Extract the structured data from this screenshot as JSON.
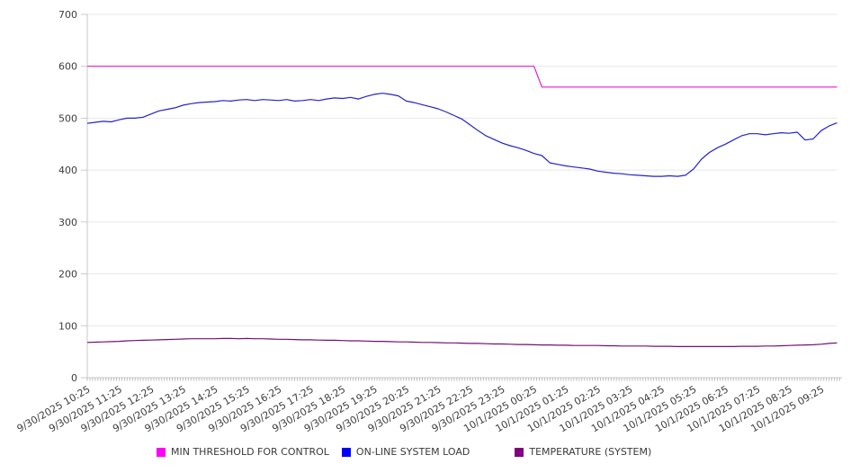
{
  "chart_data": {
    "type": "line",
    "title": "",
    "grid": true,
    "legend_position": "bottom",
    "y_axis": {
      "min": 0,
      "max": 700,
      "tick_step": 100
    },
    "x_axis": {
      "point_interval_minutes": 15,
      "minor_tick_minutes": 5,
      "labels_every_n_points": 4,
      "labels": [
        "9/30/2025 10:25",
        "9/30/2025 11:25",
        "9/30/2025 12:25",
        "9/30/2025 13:25",
        "9/30/2025 14:25",
        "9/30/2025 15:25",
        "9/30/2025 16:25",
        "9/30/2025 17:25",
        "9/30/2025 18:25",
        "9/30/2025 19:25",
        "9/30/2025 20:25",
        "9/30/2025 21:25",
        "9/30/2025 22:25",
        "9/30/2025 23:25",
        "10/1/2025 00:25",
        "10/1/2025 01:25",
        "10/1/2025 02:25",
        "10/1/2025 03:25",
        "10/1/2025 04:25",
        "10/1/2025 05:25",
        "10/1/2025 06:25",
        "10/1/2025 07:25",
        "10/1/2025 08:25",
        "10/1/2025 09:25"
      ]
    },
    "series": [
      {
        "id": "min-threshold-for-control",
        "name": "MIN THRESHOLD FOR CONTROL",
        "color": "#e61ad6",
        "swatch_color": "#ff00ff",
        "values": [
          600,
          600,
          600,
          600,
          600,
          600,
          600,
          600,
          600,
          600,
          600,
          600,
          600,
          600,
          600,
          600,
          600,
          600,
          600,
          600,
          600,
          600,
          600,
          600,
          600,
          600,
          600,
          600,
          600,
          600,
          600,
          600,
          600,
          600,
          600,
          600,
          600,
          600,
          600,
          600,
          600,
          600,
          600,
          600,
          600,
          600,
          600,
          600,
          600,
          600,
          600,
          600,
          600,
          600,
          600,
          600,
          600,
          560,
          560,
          560,
          560,
          560,
          560,
          560,
          560,
          560,
          560,
          560,
          560,
          560,
          560,
          560,
          560,
          560,
          560,
          560,
          560,
          560,
          560,
          560,
          560,
          560,
          560,
          560,
          560,
          560,
          560,
          560,
          560,
          560,
          560,
          560,
          560,
          560,
          560
        ]
      },
      {
        "id": "on-line-system-load",
        "name": "ON-LINE SYSTEM LOAD",
        "color": "#2323cc",
        "swatch_color": "#0000ff",
        "values": [
          490,
          492,
          494,
          493,
          497,
          500,
          500,
          502,
          508,
          514,
          517,
          520,
          525,
          528,
          530,
          531,
          532,
          534,
          533,
          535,
          536,
          534,
          536,
          535,
          534,
          536,
          533,
          534,
          536,
          534,
          537,
          539,
          538,
          540,
          537,
          542,
          546,
          548,
          546,
          543,
          533,
          530,
          526,
          522,
          518,
          512,
          505,
          498,
          487,
          476,
          466,
          459,
          452,
          447,
          443,
          438,
          432,
          428,
          414,
          411,
          408,
          406,
          404,
          402,
          398,
          396,
          394,
          393,
          391,
          390,
          389,
          388,
          388,
          389,
          388,
          390,
          402,
          421,
          434,
          443,
          450,
          458,
          466,
          470,
          470,
          468,
          470,
          472,
          471,
          473,
          458,
          460,
          476,
          485,
          491
        ]
      },
      {
        "id": "temperature-system",
        "name": "TEMPERATURE (SYSTEM)",
        "color": "#701270",
        "swatch_color": "#800080",
        "values": [
          68,
          68.5,
          69,
          69.5,
          70,
          71,
          71.5,
          72,
          72.5,
          73,
          73.5,
          74,
          74.5,
          75,
          75,
          75,
          75,
          75.5,
          75.5,
          75,
          75.5,
          75,
          75,
          74.5,
          74,
          74,
          73.5,
          73,
          73,
          72.5,
          72,
          72,
          71.5,
          71,
          71,
          70.5,
          70,
          70,
          69.5,
          69,
          69,
          68.5,
          68,
          68,
          67.5,
          67,
          67,
          66.5,
          66,
          66,
          65.5,
          65,
          65,
          64.5,
          64,
          64,
          63.5,
          63,
          63,
          62.5,
          62.5,
          62,
          62,
          62,
          62,
          61.5,
          61.5,
          61,
          61,
          61,
          61,
          60.5,
          60.5,
          60.5,
          60,
          60,
          60,
          60,
          60,
          60,
          60,
          60,
          60.5,
          60.5,
          60.5,
          61,
          61,
          61.5,
          62,
          62.5,
          63,
          63.5,
          64.5,
          66,
          67
        ]
      }
    ],
    "style": {
      "gridline_color": "#e8e8e8",
      "axis_color": "#c9c9c9",
      "minor_tick_color": "#bdbdbd",
      "label_color": "#3d3d3d"
    }
  }
}
